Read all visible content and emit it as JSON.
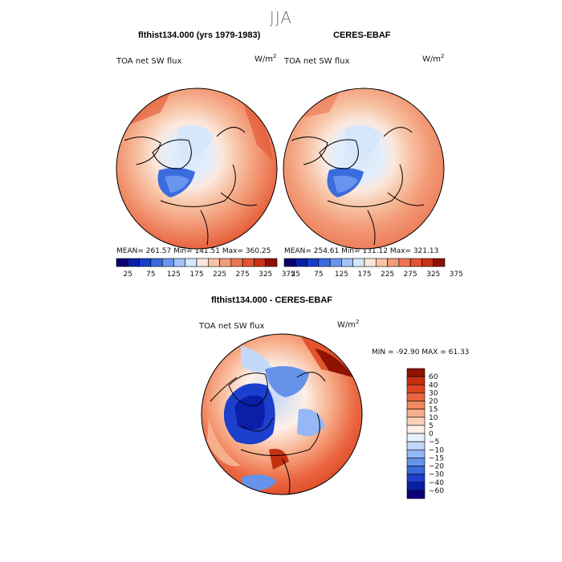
{
  "season": "JJA",
  "colors": {
    "full_scale": [
      "#08006e",
      "#0a1fa8",
      "#1640cc",
      "#3a6bdf",
      "#6a95ee",
      "#a5c2f7",
      "#d6e6fb",
      "#fbe7dc",
      "#f7c3a4",
      "#f39b78",
      "#ec7652",
      "#e3542f",
      "#c93017",
      "#8e1004"
    ],
    "diff_scale": [
      "#0a0078",
      "#0a1fa8",
      "#1c3fcd",
      "#3a6adb",
      "#6693e9",
      "#95b7f3",
      "#c4d8f9",
      "#e7f0fd",
      "#fdf0e8",
      "#fbd2b8",
      "#f7ae8a",
      "#f18a62",
      "#ea6640",
      "#dc4422",
      "#c4300f",
      "#8e1300"
    ]
  },
  "panels": [
    {
      "title": "flthist134.000 (yrs 1979-1983)",
      "field_label": "TOA net SW flux",
      "units": "W/m",
      "units_exp": "2",
      "stats": "MEAN= 261.57   Min= 141.51   Max= 360.25"
    },
    {
      "title": "CERES-EBAF",
      "field_label": "TOA net SW flux",
      "units": "W/m",
      "units_exp": "2",
      "stats": "MEAN= 254.61   Min= 131.12   Max= 321.13"
    },
    {
      "title": "flthist134.000 - CERES-EBAF",
      "field_label": "TOA net SW flux",
      "units": "W/m",
      "units_exp": "2",
      "stats": "MIN = -92.90 MAX =  61.33"
    }
  ],
  "chart_data": [
    {
      "type": "heatmap",
      "projection": "north polar stereographic",
      "title": "flthist134.000 (yrs 1979-1983)",
      "variable": "TOA net SW flux",
      "units": "W/m2",
      "mean": 261.57,
      "min": 141.51,
      "max": 360.25,
      "colorbar_ticks": [
        "25",
        "75",
        "125",
        "175",
        "225",
        "275",
        "325",
        "375"
      ],
      "colorbar_levels": [
        0,
        25,
        50,
        75,
        100,
        125,
        150,
        175,
        200,
        225,
        250,
        275,
        300,
        325,
        350,
        375
      ]
    },
    {
      "type": "heatmap",
      "projection": "north polar stereographic",
      "title": "CERES-EBAF",
      "variable": "TOA net SW flux",
      "units": "W/m2",
      "mean": 254.61,
      "min": 131.12,
      "max": 321.13,
      "colorbar_ticks": [
        "25",
        "75",
        "125",
        "175",
        "225",
        "275",
        "325",
        "375"
      ],
      "colorbar_levels": [
        0,
        25,
        50,
        75,
        100,
        125,
        150,
        175,
        200,
        225,
        250,
        275,
        300,
        325,
        350,
        375
      ]
    },
    {
      "type": "heatmap",
      "projection": "north polar stereographic",
      "title": "flthist134.000 - CERES-EBAF",
      "variable": "TOA net SW flux",
      "units": "W/m2",
      "min": -92.9,
      "max": 61.33,
      "colorbar_ticks": [
        "60",
        "40",
        "30",
        "20",
        "15",
        "10",
        "5",
        "0",
        "−5",
        "−10",
        "−15",
        "−20",
        "−30",
        "−40",
        "−60"
      ]
    }
  ]
}
